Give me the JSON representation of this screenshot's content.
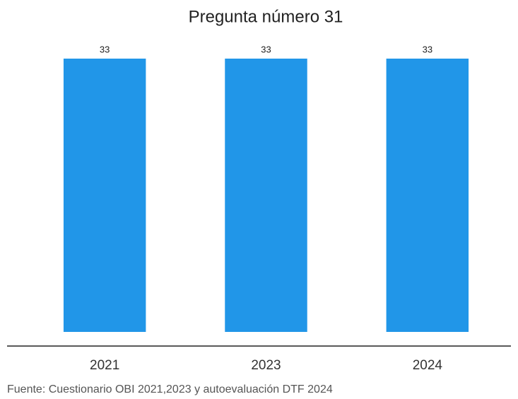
{
  "chart_data": {
    "type": "bar",
    "title": "Pregunta número 31",
    "categories": [
      "2021",
      "2023",
      "2024"
    ],
    "values": [
      33,
      33,
      33
    ],
    "color": "#2196e8",
    "caption": "Fuente: Cuestionario OBI 2021,2023 y autoevaluación DTF 2024"
  }
}
